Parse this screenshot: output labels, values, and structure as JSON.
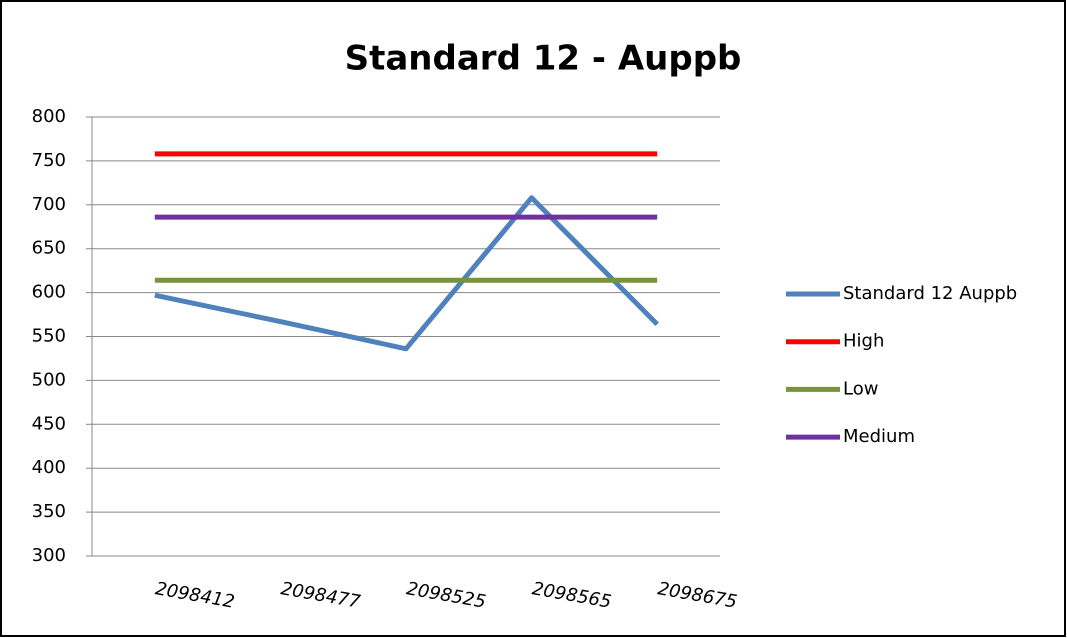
{
  "chart_data": {
    "type": "line",
    "title": "Standard 12 - Auppb",
    "categories": [
      "2098412",
      "2098477",
      "2098525",
      "2098565",
      "2098675"
    ],
    "series": [
      {
        "name": "Standard 12 Auppb",
        "color": "#4f81bd",
        "values": [
          597,
          567,
          536,
          708,
          564
        ]
      },
      {
        "name": "High",
        "color": "#ff0000",
        "values": [
          758,
          758,
          758,
          758,
          758
        ]
      },
      {
        "name": "Low",
        "color": "#77933c",
        "values": [
          614,
          614,
          614,
          614,
          614
        ]
      },
      {
        "name": "Medium",
        "color": "#7030a0",
        "values": [
          686,
          686,
          686,
          686,
          686
        ]
      }
    ],
    "ylim": [
      300,
      800
    ],
    "yticks": [
      300,
      350,
      400,
      450,
      500,
      550,
      600,
      650,
      700,
      750,
      800
    ],
    "grid": true,
    "legend": "right"
  }
}
